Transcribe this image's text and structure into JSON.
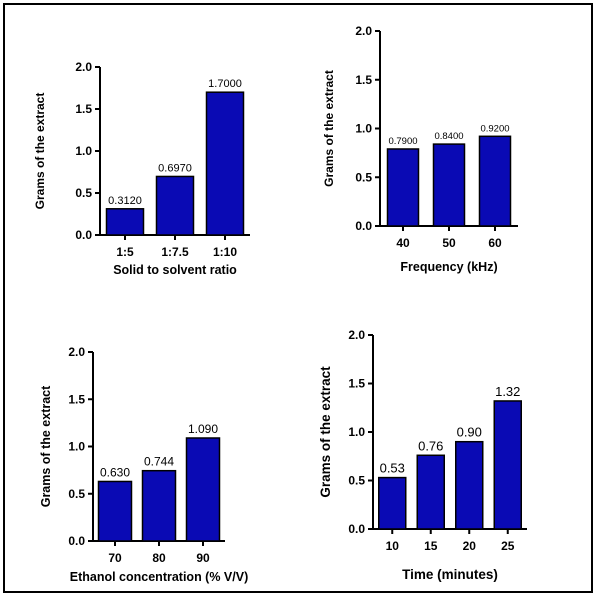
{
  "colors": {
    "bar": "#0a0ab4",
    "axis": "#000000",
    "background": "#ffffff"
  },
  "chart_data": [
    {
      "type": "bar",
      "title": "",
      "categories": [
        "1:5",
        "1:7.5",
        "1:10"
      ],
      "values": [
        0.312,
        0.697,
        1.7
      ],
      "data_labels": [
        "0.3120",
        "0.6970",
        "1.7000"
      ],
      "xlabel": "Solid to solvent ratio",
      "ylabel": "Grams of the extract",
      "ylim": [
        0,
        2
      ],
      "yticks": [
        "0.0",
        "0.5",
        "1.0",
        "1.5",
        "2.0"
      ]
    },
    {
      "type": "bar",
      "title": "",
      "categories": [
        "40",
        "50",
        "60"
      ],
      "values": [
        0.79,
        0.84,
        0.92
      ],
      "data_labels": [
        "0.7900",
        "0.8400",
        "0.9200"
      ],
      "xlabel": "Frequency (kHz)",
      "ylabel": "Grams of the extract",
      "ylim": [
        0,
        2
      ],
      "yticks": [
        "0.0",
        "0.5",
        "1.0",
        "1.5",
        "2.0"
      ]
    },
    {
      "type": "bar",
      "title": "",
      "categories": [
        "70",
        "80",
        "90"
      ],
      "values": [
        0.63,
        0.744,
        1.09
      ],
      "data_labels": [
        "0.630",
        "0.744",
        "1.090"
      ],
      "xlabel": "Ethanol concentration (% V/V)",
      "ylabel": "Grams of the extract",
      "ylim": [
        0,
        2
      ],
      "yticks": [
        "0.0",
        "0.5",
        "1.0",
        "1.5",
        "2.0"
      ]
    },
    {
      "type": "bar",
      "title": "",
      "categories": [
        "10",
        "15",
        "20",
        "25"
      ],
      "values": [
        0.53,
        0.76,
        0.9,
        1.32
      ],
      "data_labels": [
        "0.53",
        "0.76",
        "0.90",
        "1.32"
      ],
      "xlabel": "Time (minutes)",
      "ylabel": "Grams of the extract",
      "ylim": [
        0,
        2
      ],
      "yticks": [
        "0.0",
        "0.5",
        "1.0",
        "1.5",
        "2.0"
      ]
    }
  ]
}
